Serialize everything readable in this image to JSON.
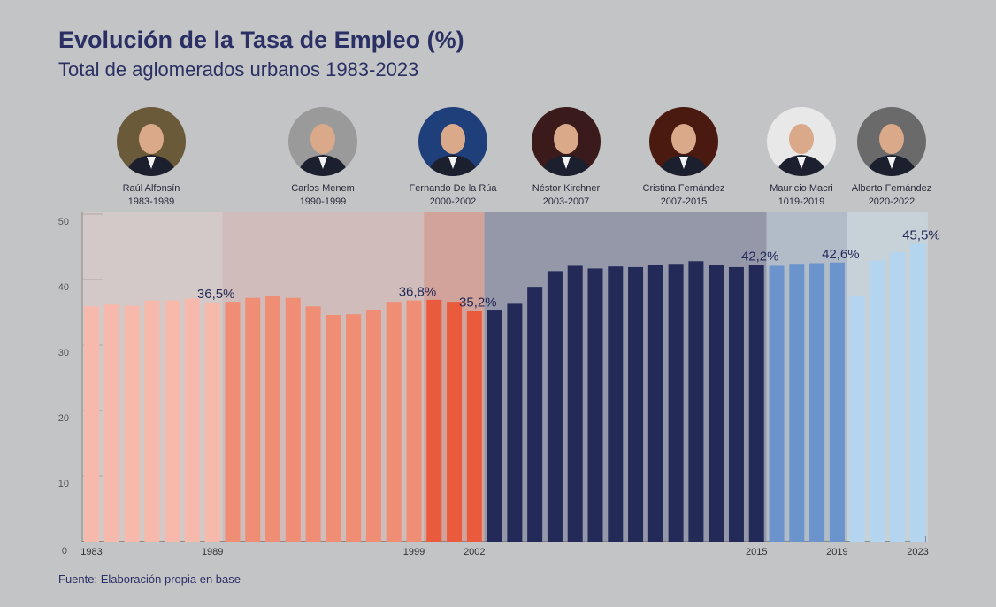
{
  "title": "Evolución de la Tasa de Empleo (%)",
  "subtitle": "Total de aglomerados urbanos 1983-2023",
  "footer": "Fuente: Elaboración propia en base",
  "presidents": [
    {
      "name": "Raúl Alfonsín",
      "years": "1983-1989"
    },
    {
      "name": "Carlos Menem",
      "years": "1990-1999"
    },
    {
      "name": "Fernando De la Rúa",
      "years": "2000-2002"
    },
    {
      "name": "Néstor Kirchner",
      "years": "2003-2007"
    },
    {
      "name": "Cristina Fernández",
      "years": "2007-2015"
    },
    {
      "name": "Mauricio Macri",
      "years": "1019-2019"
    },
    {
      "name": "Alberto Fernández",
      "years": "2020-2022"
    }
  ],
  "chart_data": {
    "type": "bar",
    "title": "Evolución de la Tasa de Empleo (%)",
    "subtitle": "Total de aglomerados urbanos 1983-2023",
    "ylim": [
      0,
      50
    ],
    "yticks": [
      0,
      10,
      20,
      30,
      40,
      50
    ],
    "grid": false,
    "series": [
      {
        "color": "#f7b9ab",
        "panel": "#d3c9c8",
        "values": [
          35.9,
          36.2,
          36.0,
          36.8,
          36.8,
          37.1,
          36.5
        ]
      },
      {
        "color": "#f08d75",
        "panel": "#d0bcbb",
        "values": [
          36.6,
          37.2,
          37.5,
          37.2,
          35.9,
          34.6,
          34.7,
          35.4,
          36.6,
          36.8
        ]
      },
      {
        "color": "#ea5b3e",
        "panel": "#d1a39b",
        "values": [
          36.9,
          36.6,
          35.2
        ]
      },
      {
        "color": "#232a58",
        "panel": "#9598a8",
        "values": [
          35.4,
          36.3,
          38.9,
          41.3,
          42.1,
          41.7,
          42.0,
          41.9,
          42.3,
          42.4,
          42.8,
          42.3,
          41.9,
          42.2
        ]
      },
      {
        "color": "#6b93cc",
        "panel": "#b2bcc8",
        "values": [
          42.1,
          42.4,
          42.5,
          42.6
        ]
      },
      {
        "color": "#b3d5f0",
        "panel": "#c6d1d8",
        "values": [
          37.5,
          42.9,
          44.2,
          45.5
        ]
      }
    ],
    "xticks": [
      {
        "label": "1983",
        "bar": 0
      },
      {
        "label": "1989",
        "bar": 6
      },
      {
        "label": "1999",
        "bar": 16
      },
      {
        "label": "2002",
        "bar": 19
      },
      {
        "label": "2015",
        "bar": 33
      },
      {
        "label": "2019",
        "bar": 37
      },
      {
        "label": "2023",
        "bar": 41
      }
    ],
    "annotations": [
      {
        "text": "36,5%",
        "bar": 6
      },
      {
        "text": "36,8%",
        "bar": 16
      },
      {
        "text": "35,2%",
        "bar": 19
      },
      {
        "text": "42,2%",
        "bar": 33
      },
      {
        "text": "42,6%",
        "bar": 37
      },
      {
        "text": "45,5%",
        "bar": 41
      }
    ]
  }
}
